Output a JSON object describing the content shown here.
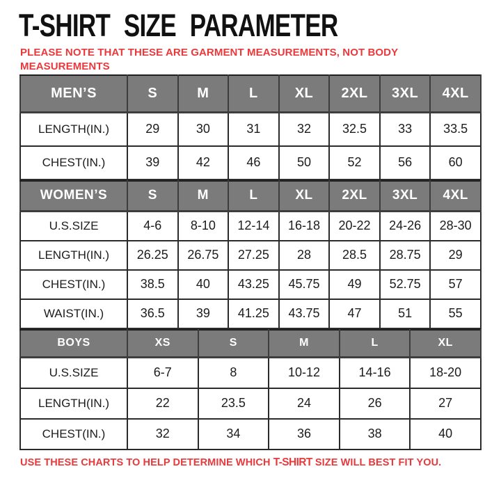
{
  "page": {
    "title": "T-SHIRT SIZE PARAMETER",
    "note": "PLEASE NOTE THAT THESE ARE GARMENT MEASUREMENTS, NOT BODY MEASUREMENTS",
    "footer": {
      "prefix": "USE THESE CHARTS TO HELP DETERMINE WHICH ",
      "emphasis": "T-SHIRT",
      "suffix": " SIZE WILL BEST FIT YOU."
    }
  },
  "colors": {
    "accent": "#e8393c",
    "headerbg": "#7b7b7b",
    "headertext": "#ffffff",
    "border": "#2b2b2b",
    "body_text": "#1c1c1c"
  },
  "chart_data": [
    {
      "type": "table",
      "name": "mens-size-table",
      "header": [
        "MEN’S",
        "S",
        "M",
        "L",
        "XL",
        "2XL",
        "3XL",
        "4XL"
      ],
      "rows": [
        [
          "LENGTH(IN.)",
          "29",
          "30",
          "31",
          "32",
          "32.5",
          "33",
          "33.5"
        ],
        [
          "CHEST(IN.)",
          "39",
          "42",
          "46",
          "50",
          "52",
          "56",
          "60"
        ]
      ]
    },
    {
      "type": "table",
      "name": "womens-size-table",
      "header": [
        "WOMEN’S",
        "S",
        "M",
        "L",
        "XL",
        "2XL",
        "3XL",
        "4XL"
      ],
      "rows": [
        [
          "U.S.SIZE",
          "4-6",
          "8-10",
          "12-14",
          "16-18",
          "20-22",
          "24-26",
          "28-30"
        ],
        [
          "LENGTH(IN.)",
          "26.25",
          "26.75",
          "27.25",
          "28",
          "28.5",
          "28.75",
          "29"
        ],
        [
          "CHEST(IN.)",
          "38.5",
          "40",
          "43.25",
          "45.75",
          "49",
          "52.75",
          "57"
        ],
        [
          "WAIST(IN.)",
          "36.5",
          "39",
          "41.25",
          "43.75",
          "47",
          "51",
          "55"
        ]
      ]
    },
    {
      "type": "table",
      "name": "boys-size-table",
      "header": [
        "BOYS",
        "XS",
        "S",
        "M",
        "L",
        "XL"
      ],
      "rows": [
        [
          "U.S.SIZE",
          "6-7",
          "8",
          "10-12",
          "14-16",
          "18-20"
        ],
        [
          "LENGTH(IN.)",
          "22",
          "23.5",
          "24",
          "26",
          "27"
        ],
        [
          "CHEST(IN.)",
          "32",
          "34",
          "36",
          "38",
          "40"
        ]
      ]
    }
  ]
}
